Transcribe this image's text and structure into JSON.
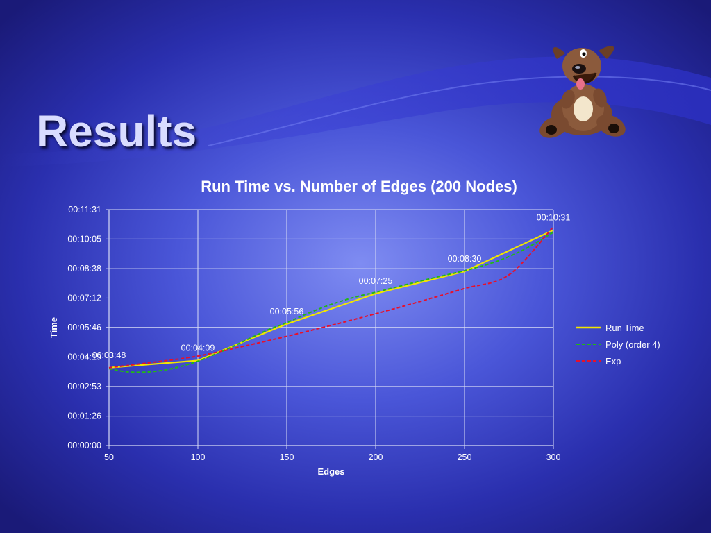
{
  "slide": {
    "title": "Results"
  },
  "chart_data": {
    "type": "line",
    "title": "Run Time vs. Number of Edges (200 Nodes)",
    "xlabel": "Edges",
    "ylabel": "Time",
    "xlim": [
      50,
      300
    ],
    "xticks": [
      50,
      100,
      150,
      200,
      250,
      300
    ],
    "ylim": [
      0,
      691
    ],
    "yticks": [
      {
        "value": 0,
        "label": "00:00:00"
      },
      {
        "value": 86,
        "label": "00:01:26"
      },
      {
        "value": 173,
        "label": "00:02:53"
      },
      {
        "value": 259,
        "label": "00:04:19"
      },
      {
        "value": 346,
        "label": "00:05:46"
      },
      {
        "value": 432,
        "label": "00:07:12"
      },
      {
        "value": 518,
        "label": "00:08:38"
      },
      {
        "value": 605,
        "label": "00:10:05"
      },
      {
        "value": 691,
        "label": "00:11:31"
      }
    ],
    "grid": true,
    "legend_position": "right",
    "series": [
      {
        "name": "Run Time",
        "style": "solid",
        "color": "#f2e600",
        "x": [
          50,
          100,
          150,
          200,
          250,
          300
        ],
        "y": [
          228,
          249,
          356,
          445,
          510,
          631
        ],
        "labels": [
          "00:03:48",
          "00:04:09",
          "00:05:56",
          "00:07:25",
          "00:08:30",
          "00:10:31"
        ]
      },
      {
        "name": "Poly (order 4)",
        "style": "dashed",
        "color": "#22b814",
        "x": [
          50,
          60,
          70,
          80,
          90,
          100,
          110,
          120,
          130,
          140,
          150,
          160,
          170,
          180,
          190,
          200,
          210,
          220,
          230,
          240,
          250,
          260,
          270,
          280,
          290,
          300
        ],
        "y": [
          225,
          216,
          215,
          220,
          231,
          247,
          268,
          291,
          316,
          340,
          360,
          383,
          404,
          422,
          437,
          449,
          462,
          475,
          488,
          500,
          512,
          526,
          543,
          565,
          593,
          625
        ]
      },
      {
        "name": "Exp",
        "style": "dashed",
        "color": "#e8102a",
        "x": [
          50,
          75,
          100,
          125,
          150,
          175,
          200,
          225,
          250,
          275,
          300
        ],
        "y": [
          228,
          244,
          262,
          290,
          320,
          352,
          386,
          422,
          460,
          500,
          641
        ]
      }
    ]
  },
  "colors": {
    "grid": "#d8dcf5",
    "axis_text": "#ffffff"
  }
}
